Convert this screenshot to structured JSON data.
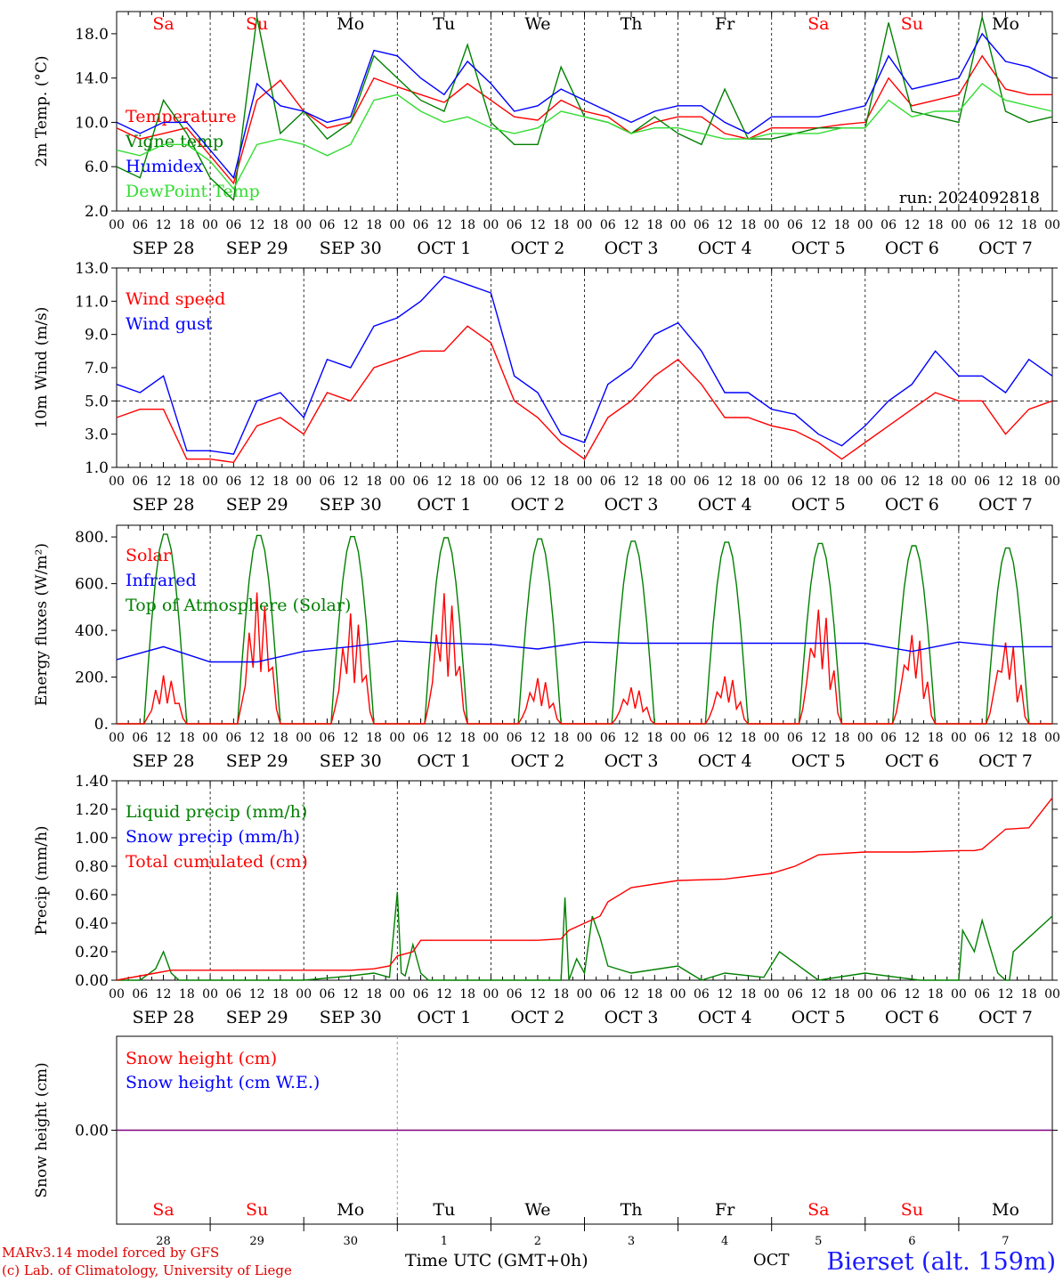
{
  "run_label": "run: 2024092818",
  "station": "Bierset (alt. 159m)",
  "footer": {
    "model_line": "MARv3.14 model forced by GFS",
    "lab_line": "(c) Lab. of Climatology, University of Liege",
    "xlabel": "Time UTC (GMT+0h)",
    "month": "OCT"
  },
  "colors": {
    "red": "#ff0000",
    "green": "#008000",
    "blue": "#0000ff",
    "light_green": "#33dd33",
    "purple": "#800080"
  },
  "time_axis": {
    "days": 10,
    "hour_ticks": [
      "00",
      "06",
      "12",
      "18"
    ],
    "date_labels": [
      "SEP 28",
      "SEP 29",
      "SEP 30",
      "OCT  1",
      "OCT  2",
      "OCT  3",
      "OCT  4",
      "OCT  5",
      "OCT  6",
      "OCT  7"
    ],
    "weekday_labels": [
      "Sa",
      "Su",
      "Mo",
      "Tu",
      "We",
      "Th",
      "Fr",
      "Sa",
      "Su",
      "Mo"
    ],
    "weekend_flags": [
      true,
      true,
      false,
      false,
      false,
      false,
      false,
      true,
      true,
      false
    ],
    "day_numbers": [
      "28",
      "29",
      "30",
      "1",
      "2",
      "3",
      "4",
      "5",
      "6",
      "7"
    ]
  },
  "chart_data": [
    {
      "type": "line",
      "ylabel": "2m Temp. (°C)",
      "ylim": [
        2,
        20
      ],
      "yticks": [
        2,
        6,
        10,
        14,
        18
      ],
      "ytick_labels": [
        "2.0",
        "6.0",
        "10.0",
        "14.0",
        "18.0"
      ],
      "x_unit": "hours since SEP 28 00 UTC",
      "series": [
        {
          "name": "Temperature",
          "color": "red",
          "x": [
            0,
            6,
            12,
            18,
            24,
            30,
            36,
            42,
            48,
            54,
            60,
            66,
            72,
            78,
            84,
            90,
            96,
            102,
            108,
            114,
            120,
            126,
            132,
            138,
            144,
            150,
            156,
            162,
            168,
            174,
            180,
            186,
            192,
            198,
            204,
            210,
            216,
            222,
            228,
            234,
            240
          ],
          "values": [
            9.5,
            8.5,
            9.0,
            9.5,
            7.0,
            4.5,
            12.0,
            13.8,
            11.0,
            9.5,
            10.0,
            14.0,
            13.2,
            12.5,
            11.8,
            13.5,
            12.0,
            10.5,
            10.2,
            12.0,
            11.0,
            10.5,
            9.0,
            10.0,
            10.5,
            10.5,
            9.0,
            8.5,
            9.5,
            9.5,
            9.5,
            9.8,
            10.0,
            14.0,
            11.5,
            12.0,
            12.5,
            16.0,
            13.0,
            12.5,
            12.5
          ]
        },
        {
          "name": "Vigne temp",
          "color": "green",
          "x": [
            0,
            6,
            12,
            18,
            24,
            30,
            36,
            42,
            48,
            54,
            60,
            66,
            72,
            78,
            84,
            90,
            96,
            102,
            108,
            114,
            120,
            126,
            132,
            138,
            144,
            150,
            156,
            162,
            168,
            174,
            180,
            186,
            192,
            198,
            204,
            210,
            216,
            222,
            228,
            234,
            240
          ],
          "values": [
            6.0,
            5.0,
            12.0,
            9.0,
            5.0,
            3.0,
            19.5,
            9.0,
            11.0,
            8.5,
            10.0,
            16.0,
            14.0,
            12.0,
            11.0,
            17.0,
            10.0,
            8.0,
            8.0,
            15.0,
            10.5,
            10.0,
            9.0,
            10.5,
            9.0,
            8.0,
            13.0,
            8.5,
            8.5,
            9.0,
            9.5,
            9.5,
            9.5,
            19.0,
            11.0,
            10.5,
            10.0,
            19.5,
            11.0,
            10.0,
            10.5
          ]
        },
        {
          "name": "Humidex",
          "color": "blue",
          "x": [
            0,
            6,
            12,
            18,
            24,
            30,
            36,
            42,
            48,
            54,
            60,
            66,
            72,
            78,
            84,
            90,
            96,
            102,
            108,
            114,
            120,
            126,
            132,
            138,
            144,
            150,
            156,
            162,
            168,
            174,
            180,
            186,
            192,
            198,
            204,
            210,
            216,
            222,
            228,
            234,
            240
          ],
          "values": [
            10.0,
            9.0,
            10.0,
            10.0,
            7.5,
            5.0,
            13.5,
            11.5,
            11.0,
            10.0,
            10.5,
            16.5,
            16.0,
            14.0,
            12.5,
            15.5,
            13.5,
            11.0,
            11.5,
            13.0,
            12.0,
            11.0,
            10.0,
            11.0,
            11.5,
            11.5,
            10.0,
            9.0,
            10.5,
            10.5,
            10.5,
            11.0,
            11.5,
            16.0,
            13.0,
            13.5,
            14.0,
            18.0,
            15.5,
            15.0,
            14.0
          ]
        },
        {
          "name": "DewPoint Temp",
          "color": "light_green",
          "x": [
            0,
            6,
            12,
            18,
            24,
            30,
            36,
            42,
            48,
            54,
            60,
            66,
            72,
            78,
            84,
            90,
            96,
            102,
            108,
            114,
            120,
            126,
            132,
            138,
            144,
            150,
            156,
            162,
            168,
            174,
            180,
            186,
            192,
            198,
            204,
            210,
            216,
            222,
            228,
            234,
            240
          ],
          "values": [
            7.5,
            7.0,
            8.0,
            8.0,
            6.5,
            4.0,
            8.0,
            8.5,
            8.0,
            7.0,
            8.0,
            12.0,
            12.5,
            11.0,
            10.0,
            10.5,
            9.5,
            9.0,
            9.5,
            11.0,
            10.5,
            10.0,
            9.0,
            9.5,
            9.5,
            9.0,
            8.5,
            8.5,
            9.0,
            9.0,
            9.0,
            9.5,
            9.5,
            12.0,
            10.5,
            11.0,
            11.0,
            13.5,
            12.0,
            11.5,
            11.0
          ]
        }
      ]
    },
    {
      "type": "line",
      "ylabel": "10m Wind (m/s)",
      "ylim": [
        1,
        13
      ],
      "yticks": [
        1,
        3,
        5,
        7,
        9,
        11,
        13
      ],
      "ytick_labels": [
        "1.0",
        "3.0",
        "5.0",
        "7.0",
        "9.0",
        "11.0",
        "13.0"
      ],
      "reference_line": 5,
      "x_unit": "hours since SEP 28 00 UTC",
      "series": [
        {
          "name": "Wind speed",
          "color": "red",
          "x": [
            0,
            6,
            12,
            18,
            24,
            30,
            36,
            42,
            48,
            54,
            60,
            66,
            72,
            78,
            84,
            90,
            96,
            102,
            108,
            114,
            120,
            126,
            132,
            138,
            144,
            150,
            156,
            162,
            168,
            174,
            180,
            186,
            192,
            198,
            204,
            210,
            216,
            222,
            228,
            234,
            240
          ],
          "values": [
            4.0,
            4.5,
            4.5,
            1.5,
            1.5,
            1.3,
            3.5,
            4.0,
            3.0,
            5.5,
            5.0,
            7.0,
            7.5,
            8.0,
            8.0,
            9.5,
            8.5,
            5.0,
            4.0,
            2.5,
            1.5,
            4.0,
            5.0,
            6.5,
            7.5,
            6.0,
            4.0,
            4.0,
            3.5,
            3.2,
            2.5,
            1.5,
            2.5,
            3.5,
            4.5,
            5.5,
            5.0,
            5.0,
            3.0,
            4.5,
            5.0
          ]
        },
        {
          "name": "Wind gust",
          "color": "blue",
          "x": [
            0,
            6,
            12,
            18,
            24,
            30,
            36,
            42,
            48,
            54,
            60,
            66,
            72,
            78,
            84,
            90,
            96,
            102,
            108,
            114,
            120,
            126,
            132,
            138,
            144,
            150,
            156,
            162,
            168,
            174,
            180,
            186,
            192,
            198,
            204,
            210,
            216,
            222,
            228,
            234,
            240
          ],
          "values": [
            6.0,
            5.5,
            6.5,
            2.0,
            2.0,
            1.8,
            5.0,
            5.5,
            4.0,
            7.5,
            7.0,
            9.5,
            10.0,
            11.0,
            12.5,
            12.0,
            11.5,
            6.5,
            5.5,
            3.0,
            2.5,
            6.0,
            7.0,
            9.0,
            9.7,
            8.0,
            5.5,
            5.5,
            4.5,
            4.2,
            3.0,
            2.3,
            3.5,
            5.0,
            6.0,
            8.0,
            6.5,
            6.5,
            5.5,
            7.5,
            6.5
          ]
        }
      ]
    },
    {
      "type": "line",
      "ylabel": "Energy fluxes (W/m²)",
      "ylim": [
        0,
        850
      ],
      "yticks": [
        0,
        200,
        400,
        600,
        800
      ],
      "ytick_labels": [
        "0.",
        "200.",
        "400.",
        "600.",
        "800."
      ],
      "x_unit": "hours since SEP 28 00 UTC",
      "solar_peaks": [
        210,
        570,
        480,
        570,
        200,
        160,
        210,
        510,
        400,
        370
      ],
      "toa_peaks": [
        820,
        815,
        810,
        805,
        800,
        790,
        785,
        780,
        770,
        760
      ],
      "series": [
        {
          "name": "Solar",
          "color": "red"
        },
        {
          "name": "Infrared",
          "color": "blue",
          "x": [
            0,
            12,
            24,
            36,
            48,
            60,
            72,
            84,
            96,
            108,
            120,
            132,
            144,
            156,
            168,
            180,
            192,
            204,
            216,
            228,
            240
          ],
          "values": [
            275,
            330,
            265,
            265,
            310,
            330,
            355,
            345,
            340,
            320,
            350,
            345,
            345,
            345,
            345,
            345,
            345,
            310,
            350,
            330,
            330
          ]
        },
        {
          "name": "Top of Atmosphere (Solar)",
          "color": "green"
        }
      ]
    },
    {
      "type": "line",
      "ylabel": "Precip (mm/h)",
      "ylim": [
        0,
        1.4
      ],
      "yticks": [
        0,
        0.2,
        0.4,
        0.6,
        0.8,
        1.0,
        1.2,
        1.4
      ],
      "ytick_labels": [
        "0.00",
        "0.20",
        "0.40",
        "0.60",
        "0.80",
        "1.00",
        "1.20",
        "1.40"
      ],
      "x_unit": "hours since SEP 28 00 UTC",
      "series": [
        {
          "name": "Liquid precip (mm/h)",
          "color": "green",
          "x": [
            0,
            6,
            10,
            12,
            14,
            16,
            20,
            24,
            48,
            60,
            66,
            70,
            72,
            73,
            74,
            76,
            78,
            80,
            84,
            96,
            108,
            114,
            115,
            116,
            118,
            120,
            122,
            124,
            126,
            132,
            144,
            150,
            156,
            166,
            170,
            180,
            192,
            206,
            216,
            217,
            220,
            222,
            226,
            228,
            229,
            230,
            240
          ],
          "values": [
            0,
            0,
            0.08,
            0.2,
            0.05,
            0,
            0,
            0,
            0,
            0.03,
            0.05,
            0.02,
            0.62,
            0.05,
            0.03,
            0.25,
            0.05,
            0,
            0,
            0,
            0,
            0,
            0.58,
            0,
            0.15,
            0.05,
            0.45,
            0.3,
            0.1,
            0.05,
            0.1,
            0,
            0.05,
            0.02,
            0.2,
            0,
            0.05,
            0,
            0,
            0.35,
            0.2,
            0.42,
            0.05,
            0,
            0,
            0.2,
            0.45
          ]
        },
        {
          "name": "Snow precip (mm/h)",
          "color": "blue"
        },
        {
          "name": "Total cumulated (cm)",
          "color": "red",
          "x": [
            0,
            10,
            14,
            24,
            48,
            60,
            66,
            70,
            72,
            76,
            78,
            84,
            96,
            108,
            114,
            116,
            120,
            124,
            126,
            132,
            144,
            156,
            168,
            174,
            180,
            192,
            204,
            216,
            220,
            222,
            228,
            234,
            240
          ],
          "values": [
            0,
            0.05,
            0.07,
            0.07,
            0.07,
            0.07,
            0.08,
            0.1,
            0.17,
            0.2,
            0.28,
            0.28,
            0.28,
            0.28,
            0.29,
            0.35,
            0.4,
            0.45,
            0.55,
            0.65,
            0.7,
            0.71,
            0.75,
            0.8,
            0.88,
            0.9,
            0.9,
            0.91,
            0.91,
            0.92,
            1.06,
            1.07,
            1.28
          ]
        }
      ]
    },
    {
      "type": "line",
      "ylabel": "Snow height (cm)",
      "ylim": [
        -1,
        1
      ],
      "yticks": [
        0
      ],
      "ytick_labels": [
        "0.00"
      ],
      "series": [
        {
          "name": "Snow height (cm)",
          "color": "red",
          "values": [
            0,
            0
          ]
        },
        {
          "name": "Snow height (cm W.E.)",
          "color": "blue",
          "values": [
            0,
            0
          ]
        }
      ]
    }
  ]
}
